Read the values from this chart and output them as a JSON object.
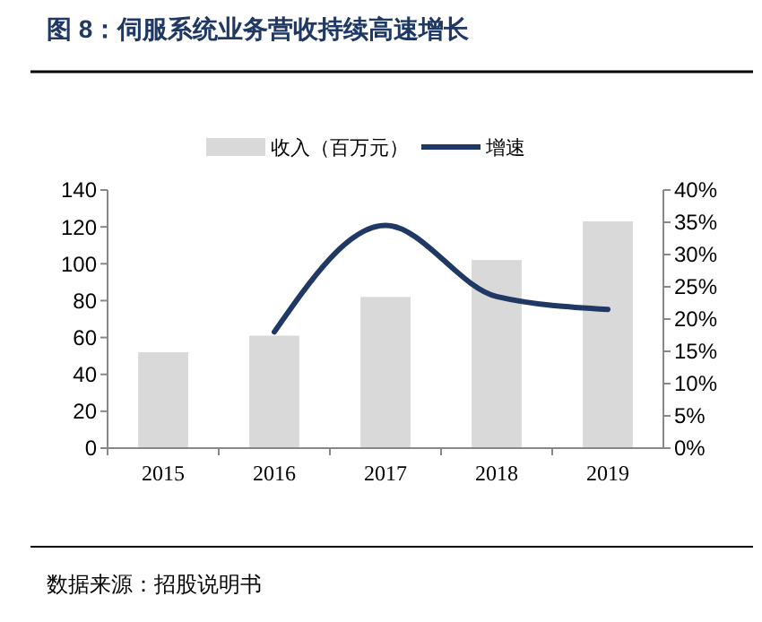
{
  "chart_data": {
    "type": "bar",
    "title": "图 8：伺服系统业务营收持续高速增长",
    "categories": [
      "2015",
      "2016",
      "2017",
      "2018",
      "2019"
    ],
    "series": [
      {
        "name": "收入（百万元）",
        "color": "#d9d9d9",
        "values": [
          52,
          61,
          82,
          102,
          123
        ]
      },
      {
        "name": "增速",
        "type": "line",
        "axis": "y2",
        "color": "#1f3864",
        "values": [
          null,
          18,
          34.5,
          23.5,
          21.5
        ]
      }
    ],
    "ylim": [
      0,
      140
    ],
    "yticks": [
      0,
      20,
      40,
      60,
      80,
      100,
      120,
      140
    ],
    "y2lim": [
      0,
      40
    ],
    "y2ticks": [
      {
        "value": 0,
        "label": "0%"
      },
      {
        "value": 5,
        "label": "5%"
      },
      {
        "value": 10,
        "label": "10%"
      },
      {
        "value": 15,
        "label": "15%"
      },
      {
        "value": 20,
        "label": "20%"
      },
      {
        "value": 25,
        "label": "25%"
      },
      {
        "value": 30,
        "label": "30%"
      },
      {
        "value": 35,
        "label": "35%"
      },
      {
        "value": 40,
        "label": "40%"
      }
    ],
    "legend": "top",
    "grid": false,
    "marker": "none",
    "annotations": [
      "数据来源：招股说明书"
    ]
  }
}
